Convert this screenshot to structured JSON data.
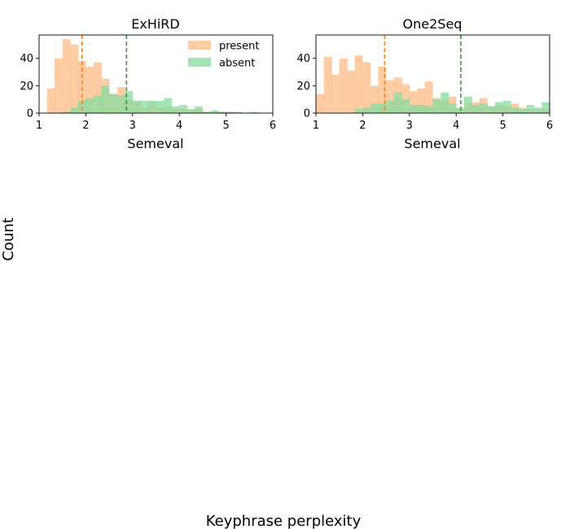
{
  "figure": {
    "ylabel": "Count",
    "xlabel": "Keyphrase perplexity"
  },
  "colors": {
    "present": "#ffbb84",
    "absent": "#86dc9f",
    "present_line": "#ff7f0e",
    "absent_line": "#2ca02c"
  },
  "chart_data": [
    {
      "type": "bar",
      "title": "ExHiRD",
      "xlabel": "Semeval",
      "ylabel": "",
      "xlim": [
        1,
        6
      ],
      "ylim": [
        0,
        57
      ],
      "xticks": [
        1,
        2,
        3,
        4,
        5,
        6
      ],
      "yticks": [
        0,
        20,
        40
      ],
      "legend": {
        "placement": "top-right",
        "entries": [
          "present",
          "absent"
        ]
      },
      "bin_width": 0.167,
      "series": [
        {
          "name": "present",
          "bins": [
            [
              1.17,
              18
            ],
            [
              1.33,
              40
            ],
            [
              1.5,
              54
            ],
            [
              1.67,
              50
            ],
            [
              1.83,
              38
            ],
            [
              2.0,
              34
            ],
            [
              2.17,
              37
            ],
            [
              2.33,
              25
            ],
            [
              2.5,
              14
            ],
            [
              2.67,
              19
            ],
            [
              2.83,
              10
            ],
            [
              3.0,
              9
            ],
            [
              3.17,
              4
            ],
            [
              3.33,
              8
            ],
            [
              3.5,
              4
            ],
            [
              3.67,
              5
            ],
            [
              3.83,
              3
            ],
            [
              4.0,
              3
            ],
            [
              4.17,
              2
            ],
            [
              4.33,
              3
            ],
            [
              4.5,
              1
            ],
            [
              4.67,
              1
            ],
            [
              4.83,
              1
            ],
            [
              5.0,
              1
            ]
          ],
          "mean_line": 1.92
        },
        {
          "name": "absent",
          "bins": [
            [
              1.5,
              1
            ],
            [
              1.67,
              4
            ],
            [
              1.83,
              9
            ],
            [
              2.0,
              11
            ],
            [
              2.17,
              13
            ],
            [
              2.33,
              20
            ],
            [
              2.5,
              14
            ],
            [
              2.67,
              13
            ],
            [
              2.83,
              16
            ],
            [
              3.0,
              9
            ],
            [
              3.17,
              9
            ],
            [
              3.33,
              9
            ],
            [
              3.5,
              9
            ],
            [
              3.67,
              11
            ],
            [
              3.83,
              5
            ],
            [
              4.0,
              6
            ],
            [
              4.17,
              3
            ],
            [
              4.33,
              5
            ],
            [
              4.5,
              1
            ],
            [
              4.67,
              2
            ],
            [
              4.83,
              1
            ],
            [
              5.0,
              1
            ],
            [
              5.17,
              1
            ],
            [
              5.5,
              1
            ]
          ],
          "mean_line": 2.87
        }
      ]
    },
    {
      "type": "bar",
      "title": "One2Seq",
      "xlabel": "Semeval",
      "ylabel": "",
      "xlim": [
        1,
        6
      ],
      "ylim": [
        0,
        57
      ],
      "xticks": [
        1,
        2,
        3,
        4,
        5,
        6
      ],
      "yticks": [
        0,
        20,
        40
      ],
      "legend": null,
      "bin_width": 0.167,
      "series": [
        {
          "name": "present",
          "bins": [
            [
              1.0,
              14
            ],
            [
              1.17,
              41
            ],
            [
              1.33,
              28
            ],
            [
              1.5,
              40
            ],
            [
              1.67,
              31
            ],
            [
              1.83,
              42
            ],
            [
              2.0,
              37
            ],
            [
              2.17,
              20
            ],
            [
              2.33,
              34
            ],
            [
              2.5,
              24
            ],
            [
              2.67,
              26
            ],
            [
              2.83,
              21
            ],
            [
              3.0,
              16
            ],
            [
              3.17,
              18
            ],
            [
              3.33,
              23
            ],
            [
              3.5,
              11
            ],
            [
              3.67,
              9
            ],
            [
              3.83,
              12
            ],
            [
              4.0,
              3
            ],
            [
              4.17,
              7
            ],
            [
              4.33,
              8
            ],
            [
              4.5,
              11
            ],
            [
              4.67,
              5
            ],
            [
              4.83,
              6
            ],
            [
              5.0,
              5
            ],
            [
              5.17,
              7
            ],
            [
              5.33,
              4
            ],
            [
              5.5,
              3
            ],
            [
              5.67,
              2
            ],
            [
              5.83,
              3
            ]
          ],
          "mean_line": 2.47
        },
        {
          "name": "absent",
          "bins": [
            [
              1.83,
              3
            ],
            [
              2.0,
              4
            ],
            [
              2.17,
              7
            ],
            [
              2.33,
              7
            ],
            [
              2.5,
              9
            ],
            [
              2.67,
              15
            ],
            [
              2.83,
              10
            ],
            [
              3.0,
              6
            ],
            [
              3.17,
              6
            ],
            [
              3.33,
              5
            ],
            [
              3.5,
              10
            ],
            [
              3.67,
              15
            ],
            [
              3.83,
              7
            ],
            [
              4.0,
              4
            ],
            [
              4.17,
              12
            ],
            [
              4.33,
              6
            ],
            [
              4.5,
              7
            ],
            [
              4.67,
              5
            ],
            [
              4.83,
              8
            ],
            [
              5.0,
              9
            ],
            [
              5.17,
              4
            ],
            [
              5.33,
              3
            ],
            [
              5.5,
              6
            ],
            [
              5.67,
              4
            ],
            [
              5.83,
              8
            ]
          ],
          "mean_line": 4.1
        }
      ]
    }
  ]
}
